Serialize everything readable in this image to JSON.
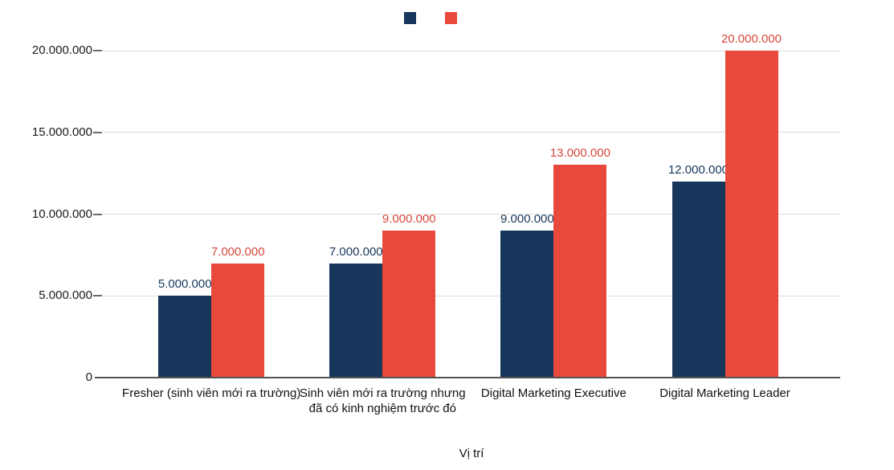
{
  "chart_data": {
    "type": "bar",
    "title": "",
    "xlabel": "Vị trí",
    "ylabel": "",
    "categories": [
      "Fresher (sinh viên mới ra trường)",
      "Sinh viên mới ra trường nhưng đã có kinh nghiệm trước đó",
      "Digital Marketing Executive",
      "Digital Marketing Leader"
    ],
    "series": [
      {
        "name": "",
        "color": "#17365C",
        "label_color": "#17365C",
        "values": [
          5000000,
          7000000,
          9000000,
          12000000
        ],
        "labels": [
          "5.000.000",
          "7.000.000",
          "9.000.000",
          "12.000.000"
        ]
      },
      {
        "name": "",
        "color": "#E8493B",
        "label_color": "#D6483C",
        "values": [
          7000000,
          9000000,
          13000000,
          20000000
        ],
        "labels": [
          "7.000.000",
          "9.000.000",
          "13.000.000",
          "20.000.000"
        ]
      }
    ],
    "y_axis": {
      "min": 0,
      "max": 20000000,
      "tick_interval": 5000000,
      "ticks": [
        {
          "value": 0,
          "label": "0"
        },
        {
          "value": 5000000,
          "label": "5.000.000"
        },
        {
          "value": 10000000,
          "label": "10.000.000"
        },
        {
          "value": 15000000,
          "label": "15.000.000"
        },
        {
          "value": 20000000,
          "label": "20.000.000"
        }
      ]
    },
    "legend": {
      "position": "top-center",
      "entries": [
        {
          "label": "",
          "color": "#17365C"
        },
        {
          "label": "",
          "color": "#E8493B"
        }
      ]
    },
    "grid": "horizontal",
    "background_color": "#ffffff"
  }
}
